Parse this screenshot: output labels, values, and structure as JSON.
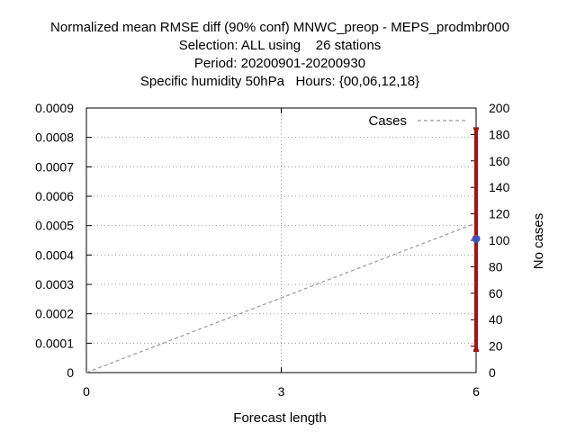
{
  "chart_data": {
    "type": "line",
    "title_lines": [
      "Normalized mean RMSE diff (90% conf) MNWC_preop - MEPS_prodmbr000",
      "Selection: ALL using    26 stations",
      "Period: 20200901-20200930",
      "Specific humidity 50hPa   Hours: {00,06,12,18}"
    ],
    "xlabel": "Forecast length",
    "ylabel_right": "No cases",
    "x_ticks": [
      "0",
      "3",
      "6"
    ],
    "xlim": [
      0,
      6
    ],
    "y_ticks": [
      "0",
      "0.0001",
      "0.0002",
      "0.0003",
      "0.0004",
      "0.0005",
      "0.0006",
      "0.0007",
      "0.0008",
      "0.0009"
    ],
    "ylim": [
      0,
      0.0009
    ],
    "y2_ticks": [
      "0",
      "20",
      "40",
      "60",
      "80",
      "100",
      "120",
      "140",
      "160",
      "180",
      "200"
    ],
    "y2lim": [
      0,
      200
    ],
    "grid": true,
    "legend_position": "top-right",
    "legend": [
      "Cases"
    ],
    "series": [
      {
        "name": "Cases",
        "axis": "right",
        "style": "dashed",
        "color": "#999999",
        "x": [
          0,
          6
        ],
        "y": [
          0,
          113
        ]
      }
    ],
    "points": [
      {
        "x": 6,
        "y": 0.000455,
        "color": "#3355cc"
      }
    ],
    "errorbars": [
      {
        "x": 6,
        "low": 7.5e-05,
        "high": 0.00083,
        "color": "#aa1111"
      }
    ]
  }
}
